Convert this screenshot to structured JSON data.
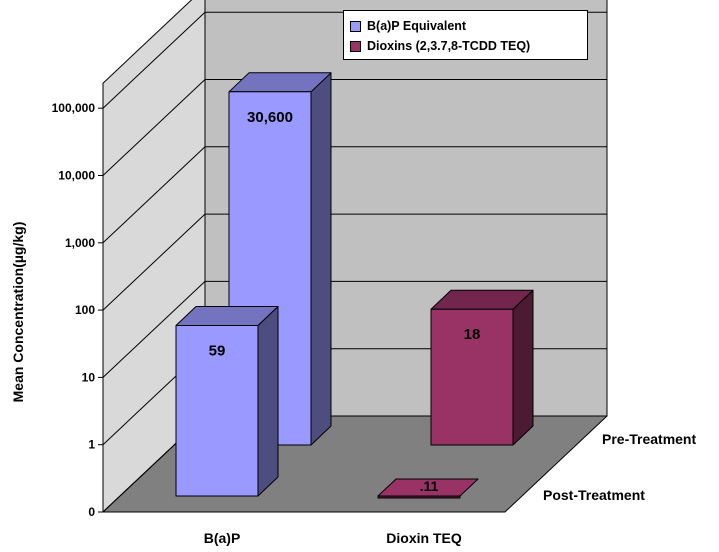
{
  "chart_data": {
    "type": "bar",
    "subtype": "3d-clustered-depth",
    "scale": "log",
    "ylabel": "Mean Concentration(µg/kg)",
    "y_ticks": [
      "0",
      "1",
      "10",
      "100",
      "1,000",
      "10,000",
      "100,000"
    ],
    "categories": [
      "B(a)P",
      "Dioxin TEQ"
    ],
    "depth_series": [
      "Pre-Treatment",
      "Post-Treatment"
    ],
    "legend": [
      {
        "name": "B(a)P Equivalent",
        "color": "#9999ff"
      },
      {
        "name": "Dioxins (2,3.7,8-TCDD TEQ)",
        "color": "#993366"
      }
    ],
    "bars": [
      {
        "category": "B(a)P",
        "row": "Pre-Treatment",
        "value": 30600,
        "label": "30,600",
        "color": "#9999ff",
        "label_color": "#000000"
      },
      {
        "category": "B(a)P",
        "row": "Post-Treatment",
        "value": 59,
        "label": "59",
        "color": "#9999ff",
        "label_color": "#000000"
      },
      {
        "category": "Dioxin TEQ",
        "row": "Pre-Treatment",
        "value": 18,
        "label": "18",
        "color": "#993366",
        "label_color": "#ffffff"
      },
      {
        "category": "Dioxin TEQ",
        "row": "Post-Treatment",
        "value": 0.11,
        "label": ".11",
        "color": "#993366",
        "label_color": "#ffffff"
      }
    ],
    "grid": true,
    "legend_position": "top-right"
  }
}
